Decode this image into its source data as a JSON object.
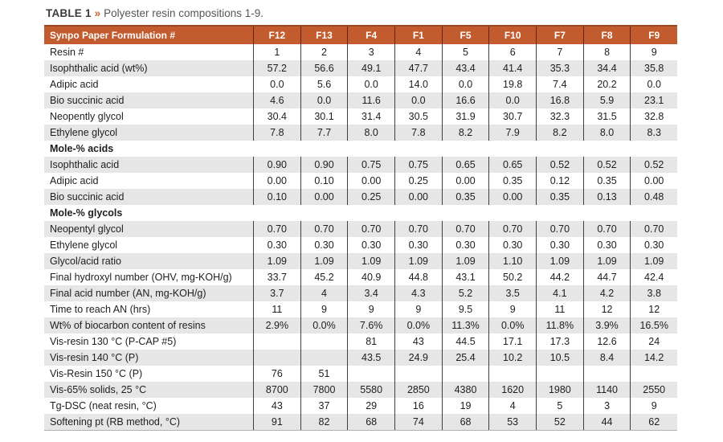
{
  "caption": {
    "label": "TABLE 1",
    "separator": "»",
    "text": "Polyester resin compositions 1-9."
  },
  "colors": {
    "header_bg": "#c25b2d",
    "header_top_border": "#9c4720",
    "row_stripe": "#e7e6e6",
    "column_divider": "#3f3f3f",
    "caption_accent": "#c2602f"
  },
  "table": {
    "header": [
      "Synpo Paper Formulation #",
      "F12",
      "F13",
      "F4",
      "F1",
      "F5",
      "F10",
      "F7",
      "F8",
      "F9"
    ],
    "rows": [
      {
        "type": "data",
        "shade": false,
        "label": "Resin #",
        "values": [
          "1",
          "2",
          "3",
          "4",
          "5",
          "6",
          "7",
          "8",
          "9"
        ]
      },
      {
        "type": "data",
        "shade": true,
        "label": "Isophthalic acid (wt%)",
        "values": [
          "57.2",
          "56.6",
          "49.1",
          "47.7",
          "43.4",
          "41.4",
          "35.3",
          "34.4",
          "35.8"
        ]
      },
      {
        "type": "data",
        "shade": false,
        "label": "Adipic acid",
        "values": [
          "0.0",
          "5.6",
          "0.0",
          "14.0",
          "0.0",
          "19.8",
          "7.4",
          "20.2",
          "0.0"
        ]
      },
      {
        "type": "data",
        "shade": true,
        "label": "Bio succinic acid",
        "values": [
          "4.6",
          "0.0",
          "11.6",
          "0.0",
          "16.6",
          "0.0",
          "16.8",
          "5.9",
          "23.1"
        ]
      },
      {
        "type": "data",
        "shade": false,
        "label": "Neopently glycol",
        "values": [
          "30.4",
          "30.1",
          "31.4",
          "30.5",
          "31.9",
          "30.7",
          "32.3",
          "31.5",
          "32.8"
        ]
      },
      {
        "type": "data",
        "shade": true,
        "label": "Ethylene glycol",
        "values": [
          "7.8",
          "7.7",
          "8.0",
          "7.8",
          "8.2",
          "7.9",
          "8.2",
          "8.0",
          "8.3"
        ]
      },
      {
        "type": "section",
        "label": "Mole-% acids"
      },
      {
        "type": "data",
        "shade": true,
        "label": "Isophthalic acid",
        "values": [
          "0.90",
          "0.90",
          "0.75",
          "0.75",
          "0.65",
          "0.65",
          "0.52",
          "0.52",
          "0.52"
        ]
      },
      {
        "type": "data",
        "shade": false,
        "label": "Adipic acid",
        "values": [
          "0.00",
          "0.10",
          "0.00",
          "0.25",
          "0.00",
          "0.35",
          "0.12",
          "0.35",
          "0.00"
        ]
      },
      {
        "type": "data",
        "shade": true,
        "label": "Bio succinic acid",
        "values": [
          "0.10",
          "0.00",
          "0.25",
          "0.00",
          "0.35",
          "0.00",
          "0.35",
          "0.13",
          "0.48"
        ]
      },
      {
        "type": "section",
        "label": "Mole-% glycols"
      },
      {
        "type": "data",
        "shade": true,
        "label": "Neopentyl glycol",
        "values": [
          "0.70",
          "0.70",
          "0.70",
          "0.70",
          "0.70",
          "0.70",
          "0.70",
          "0.70",
          "0.70"
        ]
      },
      {
        "type": "data",
        "shade": false,
        "label": "Ethylene glycol",
        "values": [
          "0.30",
          "0.30",
          "0.30",
          "0.30",
          "0.30",
          "0.30",
          "0.30",
          "0.30",
          "0.30"
        ]
      },
      {
        "type": "data",
        "shade": true,
        "label": "Glycol/acid ratio",
        "values": [
          "1.09",
          "1.09",
          "1.09",
          "1.09",
          "1.09",
          "1.10",
          "1.09",
          "1.09",
          "1.09"
        ]
      },
      {
        "type": "data",
        "shade": false,
        "label": "Final hydroxyl number (OHV, mg-KOH/g)",
        "values": [
          "33.7",
          "45.2",
          "40.9",
          "44.8",
          "43.1",
          "50.2",
          "44.2",
          "44.7",
          "42.4"
        ]
      },
      {
        "type": "data",
        "shade": true,
        "label": "Final acid number (AN, mg-KOH/g)",
        "values": [
          "3.7",
          "4",
          "3.4",
          "4.3",
          "5.2",
          "3.5",
          "4.1",
          "4.2",
          "3.8"
        ]
      },
      {
        "type": "data",
        "shade": false,
        "label": "Time to reach AN (hrs)",
        "values": [
          "11",
          "9",
          "9",
          "9",
          "9.5",
          "9",
          "11",
          "12",
          "12"
        ]
      },
      {
        "type": "data",
        "shade": true,
        "label": "Wt% of biocarbon content of resins",
        "values": [
          "2.9%",
          "0.0%",
          "7.6%",
          "0.0%",
          "11.3%",
          "0.0%",
          "11.8%",
          "3.9%",
          "16.5%"
        ]
      },
      {
        "type": "data",
        "shade": false,
        "label": "Vis-resin 130 °C (P-CAP #5)",
        "values": [
          "",
          "",
          "81",
          "43",
          "44.5",
          "17.1",
          "17.3",
          "12.6",
          "24"
        ]
      },
      {
        "type": "data",
        "shade": true,
        "label": "Vis-resin 140 °C (P)",
        "values": [
          "",
          "",
          "43.5",
          "24.9",
          "25.4",
          "10.2",
          "10.5",
          "8.4",
          "14.2"
        ]
      },
      {
        "type": "data",
        "shade": false,
        "label": "Vis-Resin 150 °C (P)",
        "values": [
          "76",
          "51",
          "",
          "",
          "",
          "",
          "",
          "",
          ""
        ]
      },
      {
        "type": "data",
        "shade": true,
        "label": "Vis-65% solids, 25 °C",
        "values": [
          "8700",
          "7800",
          "5580",
          "2850",
          "4380",
          "1620",
          "1980",
          "1140",
          "2550"
        ]
      },
      {
        "type": "data",
        "shade": false,
        "label": "Tg-DSC (neat resin, °C)",
        "values": [
          "43",
          "37",
          "29",
          "16",
          "19",
          "4",
          "5",
          "3",
          "9"
        ]
      },
      {
        "type": "data",
        "shade": true,
        "label": "Softening pt (RB method, °C)",
        "values": [
          "91",
          "82",
          "68",
          "74",
          "68",
          "53",
          "52",
          "44",
          "62"
        ]
      }
    ]
  }
}
